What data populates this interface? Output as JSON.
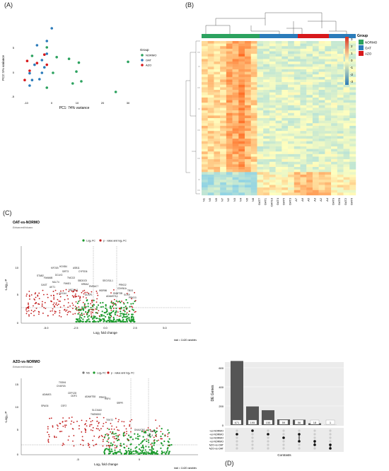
{
  "panels": {
    "a": "(A)",
    "b": "(B)",
    "c": "(C)",
    "d": "(D)"
  },
  "colors": {
    "normo": "#2ca25f",
    "oat": "#2b7bba",
    "azo": "#d7191c",
    "grey_bg": "#ebebeb",
    "volcano_green": "#1a9a2b",
    "volcano_red": "#c21b1b",
    "bar": "#555555"
  },
  "pca": {
    "xlabel": "PC1: 74% variance",
    "ylabel": "PC2: 5% variance",
    "legend_title": "Group",
    "legend_items": [
      "NORMO",
      "OAT",
      "AZO"
    ],
    "xticks": [
      "-10",
      "0",
      "10",
      "20",
      "30"
    ],
    "yticks": [
      "5",
      "0",
      "-5"
    ],
    "chart_data": {
      "type": "scatter",
      "xlabel": "PC1: 74% variance",
      "ylabel": "PC2: 5% variance",
      "xlim": [
        -13,
        33
      ],
      "ylim": [
        -8,
        10
      ],
      "series": [
        {
          "name": "NORMO",
          "points": [
            [
              -2,
              4.5
            ],
            [
              -8,
              2.5
            ],
            [
              2,
              2.2
            ],
            [
              11,
              0.9
            ],
            [
              7,
              1.8
            ],
            [
              10,
              -1.2
            ],
            [
              12,
              -3.5
            ],
            [
              26,
              -6
            ],
            [
              31,
              1.1
            ],
            [
              8.5,
              -4
            ],
            [
              0.5,
              -1.5
            ],
            [
              -2,
              -5
            ]
          ]
        },
        {
          "name": "OAT",
          "points": [
            [
              0,
              9
            ],
            [
              -6,
              5
            ],
            [
              -2,
              6
            ],
            [
              -7,
              0.4
            ],
            [
              -9,
              -1.6
            ],
            [
              -4,
              -1.5
            ],
            [
              -5,
              -3
            ],
            [
              -9,
              -4.5
            ],
            [
              -8,
              -3.2
            ],
            [
              -4,
              1.5
            ],
            [
              -3,
              -0.2
            ],
            [
              -2,
              3
            ]
          ]
        },
        {
          "name": "AZO",
          "points": [
            [
              -10,
              1.3
            ],
            [
              -6,
              0.8
            ],
            [
              -3,
              2.8
            ],
            [
              -9,
              -1
            ],
            [
              -11,
              -3.2
            ],
            [
              -2,
              0.4
            ]
          ]
        }
      ]
    }
  },
  "heatmap": {
    "legend_title": "Group",
    "legend_items": [
      "NORMO",
      "OAT",
      "AZO"
    ],
    "scale_ticks": [
      "3",
      "2",
      "1",
      "0",
      "-1",
      "-2",
      "-3"
    ],
    "col_labels": [
      "N1",
      "N5",
      "N9",
      "N7",
      "N2",
      "N3",
      "N4",
      "N6",
      "N8",
      "OAT7",
      "OAT1",
      "OAT10",
      "OAT4",
      "OAT5",
      "OAT3",
      "A7",
      "A6",
      "A5",
      "A3",
      "A2",
      "A4",
      "OAT9",
      "OAT8",
      "OAT2",
      "OAT6"
    ],
    "col_groups": [
      "N",
      "N",
      "N",
      "N",
      "N",
      "N",
      "N",
      "N",
      "N",
      "O",
      "O",
      "O",
      "O",
      "O",
      "O",
      "A",
      "A",
      "A",
      "A",
      "A",
      "A",
      "O",
      "O",
      "O",
      "O"
    ]
  },
  "volcano1": {
    "title": "OAT-vs-NORMO",
    "subtitle": "EnhancedVolcano",
    "legend": [
      "Log₂ FC",
      "p - value and log₂ FC"
    ],
    "xlabel": "Log₂ fold change",
    "ylabel": "-Log₁₀ P",
    "xticks": [
      "-5.0",
      "-2.5",
      "0.0",
      "2.5",
      "5.0"
    ],
    "yticks": [
      "10",
      "5",
      "0"
    ],
    "footer": "total = 11420 variables",
    "genes": [
      "KIF21B",
      "HOXB4",
      "ASB11",
      "CYP2D6",
      "SIRT3",
      "DCLK3",
      "STAB2",
      "FAM46B",
      "TMCO2",
      "SBDDC5",
      "MLLT4",
      "FAM21",
      "KRBA2",
      "GAST",
      "AKT1",
      "SECIS1L1",
      "PRKD2",
      "CDKN1A",
      "TBX3",
      "DNMT3B",
      "EMSAC7",
      "WDR86",
      "SOX9",
      "PRKD3",
      "ADAMSTL1",
      "MICALL1",
      "CDCA4",
      "DUSP1"
    ]
  },
  "volcano2": {
    "title": "AZO-vs-NORMO",
    "subtitle": "EnhancedVolcano",
    "legend": [
      "NS",
      "Log₂ FC",
      "p - value and log₂ FC"
    ],
    "xlabel": "Log₂ fold change",
    "ylabel": "-Log₁₀ P",
    "xticks": [
      "-5",
      "0"
    ],
    "yticks": [
      "15",
      "10",
      "5",
      "0"
    ],
    "footer": "total = 11420 variables",
    "genes": [
      "TSSK6",
      "CHAF1B",
      "ADAM21",
      "CEP128",
      "SPAG6",
      "ADAMTS8",
      "ODF3",
      "PRKD1",
      "CSF2",
      "SRPR",
      "HSF4",
      "NME1",
      "DNAJC5G",
      "SLC34A3",
      "TMEM30C",
      "TEKT2",
      "RPL3"
    ]
  },
  "upset": {
    "ylabel": "DE Genes",
    "xlabel": "Contrasts",
    "yticks": [
      "600",
      "400",
      "200",
      "0"
    ],
    "set_labels": [
      "Down OAT-vs-NORMO",
      "Down AZO-vs-NORMO",
      "Up OAT-vs-NORMO",
      "Up AZO-vs-NORMO",
      "Up AZO-vs-OAT",
      "Down AZO-vs-OAT"
    ],
    "chart_data": {
      "type": "bar",
      "ylabel": "DE Genes",
      "xlabel": "Contrasts",
      "categories": [
        "1",
        "2",
        "3",
        "4",
        "5",
        "6",
        "7"
      ],
      "values": [
        671,
        195,
        155,
        59,
        56,
        18,
        1
      ],
      "ylim": [
        0,
        700
      ]
    },
    "matrix": [
      [
        1
      ],
      [
        0
      ],
      [
        1
      ],
      [
        2
      ],
      [
        1,
        3
      ],
      [
        3,
        4
      ],
      [
        4,
        5
      ]
    ]
  }
}
